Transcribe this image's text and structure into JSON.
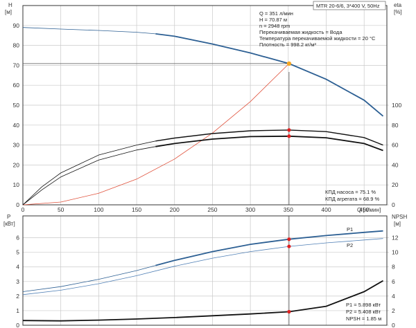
{
  "header": {
    "model": "MTR 20-6/6, 3*400 V, 50Hz",
    "h_axis_label": "H",
    "h_unit": "[м]",
    "eta_axis_label": "eta",
    "eta_unit": "[%]",
    "p_axis_label": "P",
    "p_unit": "[кВт]",
    "npsh_axis_label": "NPSH",
    "npsh_unit": "[м]",
    "q_axis_label": "Q [л/мин]"
  },
  "duty_info": [
    "Q = 351 л/мин",
    "H = 70.87 м",
    "n = 2948 rpm",
    "Перекачиваемая жидкость = Вода",
    "Температура перекачиваемой жидкости = 20 °C",
    "Плотность = 998.2 кг/м³"
  ],
  "efficiency_info": [
    "КПД насоса = 75.1 %",
    "КПД агрегата = 68.9 %"
  ],
  "power_info": [
    "P1 = 5.898 кВт",
    "P2 = 5.408 кВт",
    "NPSH = 1.85 м"
  ],
  "colors": {
    "h_curve": "#2c5f93",
    "p1_curve": "#2c5f93",
    "p2_curve": "#4f7fb5",
    "system_curve": "#e0503a",
    "eta_curves": "#111111",
    "duty_point_h": "#f5a623",
    "duty_point": "#e02020",
    "crosshair": "#555555"
  },
  "chart_data": [
    {
      "type": "line",
      "x_ticks": [
        0,
        50,
        100,
        150,
        200,
        250,
        300,
        350,
        400,
        450
      ],
      "xlim": [
        0,
        480
      ],
      "left_axis": {
        "ylim": [
          0,
          100
        ],
        "ticks": [
          0,
          10,
          20,
          30,
          40,
          50,
          60,
          70,
          80,
          90
        ]
      },
      "right_axis": {
        "ylim": [
          0,
          200
        ],
        "ticks": [
          0,
          20,
          40,
          60,
          80,
          100
        ]
      },
      "series": [
        {
          "id": "H",
          "axis": "left",
          "style": "thin",
          "x": [
            0,
            50,
            100,
            150,
            175
          ],
          "y": [
            89,
            88.2,
            87.5,
            86.6,
            85.8
          ]
        },
        {
          "id": "H",
          "axis": "left",
          "style": "thick",
          "x": [
            175,
            200,
            250,
            300,
            351,
            400,
            450,
            475
          ],
          "y": [
            85.8,
            84.6,
            80.7,
            76.2,
            70.87,
            63,
            52.5,
            44.5
          ]
        },
        {
          "id": "system",
          "axis": "left",
          "style": "thin",
          "x": [
            0,
            50,
            100,
            150,
            200,
            250,
            300,
            351
          ],
          "y": [
            0,
            1.4,
            5.8,
            12.9,
            23,
            36,
            51.8,
            70.87
          ]
        },
        {
          "id": "eta_pump",
          "axis": "right",
          "style": "thin",
          "x": [
            0,
            25,
            50,
            100,
            150,
            175
          ],
          "y": [
            0,
            18,
            32,
            50,
            60,
            64
          ]
        },
        {
          "id": "eta_pump",
          "axis": "right",
          "style": "medium",
          "x": [
            175,
            200,
            250,
            300,
            351,
            400,
            450,
            475
          ],
          "y": [
            64,
            67,
            71.5,
            74.3,
            75.1,
            73.5,
            67.5,
            60
          ]
        },
        {
          "id": "eta_unit",
          "axis": "right",
          "style": "thin",
          "x": [
            0,
            25,
            50,
            100,
            150,
            175
          ],
          "y": [
            0,
            15,
            28,
            45,
            55,
            58.5
          ]
        },
        {
          "id": "eta_unit",
          "axis": "right",
          "style": "thick",
          "x": [
            175,
            200,
            250,
            300,
            351,
            400,
            450,
            475
          ],
          "y": [
            58.5,
            61.5,
            66,
            68.5,
            68.9,
            67.3,
            61.5,
            54.5
          ]
        }
      ],
      "points": [
        {
          "id": "duty_h",
          "axis": "left",
          "x": 351,
          "y": 70.87
        },
        {
          "id": "duty_eta_pump",
          "axis": "right",
          "x": 351,
          "y": 75.1
        },
        {
          "id": "duty_eta_unit",
          "axis": "right",
          "x": 351,
          "y": 68.9
        }
      ]
    },
    {
      "type": "line",
      "x_ticks": [
        0,
        50,
        100,
        150,
        200,
        250,
        300,
        350,
        400,
        450
      ],
      "xlim": [
        0,
        480
      ],
      "left_axis": {
        "ylim": [
          0,
          7.5
        ],
        "ticks": [
          0,
          1,
          2,
          3,
          4,
          5,
          6
        ]
      },
      "right_axis": {
        "ylim": [
          0,
          15
        ],
        "ticks": [
          0,
          2,
          4,
          6,
          8,
          10,
          12
        ]
      },
      "series": [
        {
          "id": "P1",
          "name": "P1",
          "axis": "left",
          "style": "thin",
          "x": [
            0,
            50,
            100,
            150,
            175
          ],
          "y": [
            2.3,
            2.65,
            3.15,
            3.75,
            4.1
          ]
        },
        {
          "id": "P1",
          "name": "P1",
          "axis": "left",
          "style": "thick",
          "x": [
            175,
            200,
            250,
            300,
            351,
            400,
            450,
            475
          ],
          "y": [
            4.1,
            4.45,
            5.05,
            5.55,
            5.898,
            6.15,
            6.37,
            6.47
          ]
        },
        {
          "id": "P2",
          "name": "P2",
          "axis": "left",
          "style": "thin",
          "x": [
            0,
            50,
            100,
            150,
            200,
            250,
            300,
            351,
            400,
            450,
            475
          ],
          "y": [
            2.1,
            2.4,
            2.85,
            3.4,
            4.05,
            4.6,
            5.05,
            5.408,
            5.65,
            5.85,
            5.95
          ]
        },
        {
          "id": "NPSH",
          "axis": "right",
          "style": "thick",
          "x": [
            0,
            50,
            100,
            150,
            200,
            250,
            300,
            351,
            400,
            450,
            475
          ],
          "y": [
            0.65,
            0.6,
            0.7,
            0.85,
            1.05,
            1.3,
            1.55,
            1.85,
            2.6,
            4.6,
            6.1
          ]
        }
      ],
      "points": [
        {
          "id": "duty_p1",
          "axis": "left",
          "x": 351,
          "y": 5.898
        },
        {
          "id": "duty_p2",
          "axis": "left",
          "x": 351,
          "y": 5.408
        },
        {
          "id": "duty_npsh",
          "axis": "right",
          "x": 351,
          "y": 1.85
        }
      ]
    }
  ]
}
